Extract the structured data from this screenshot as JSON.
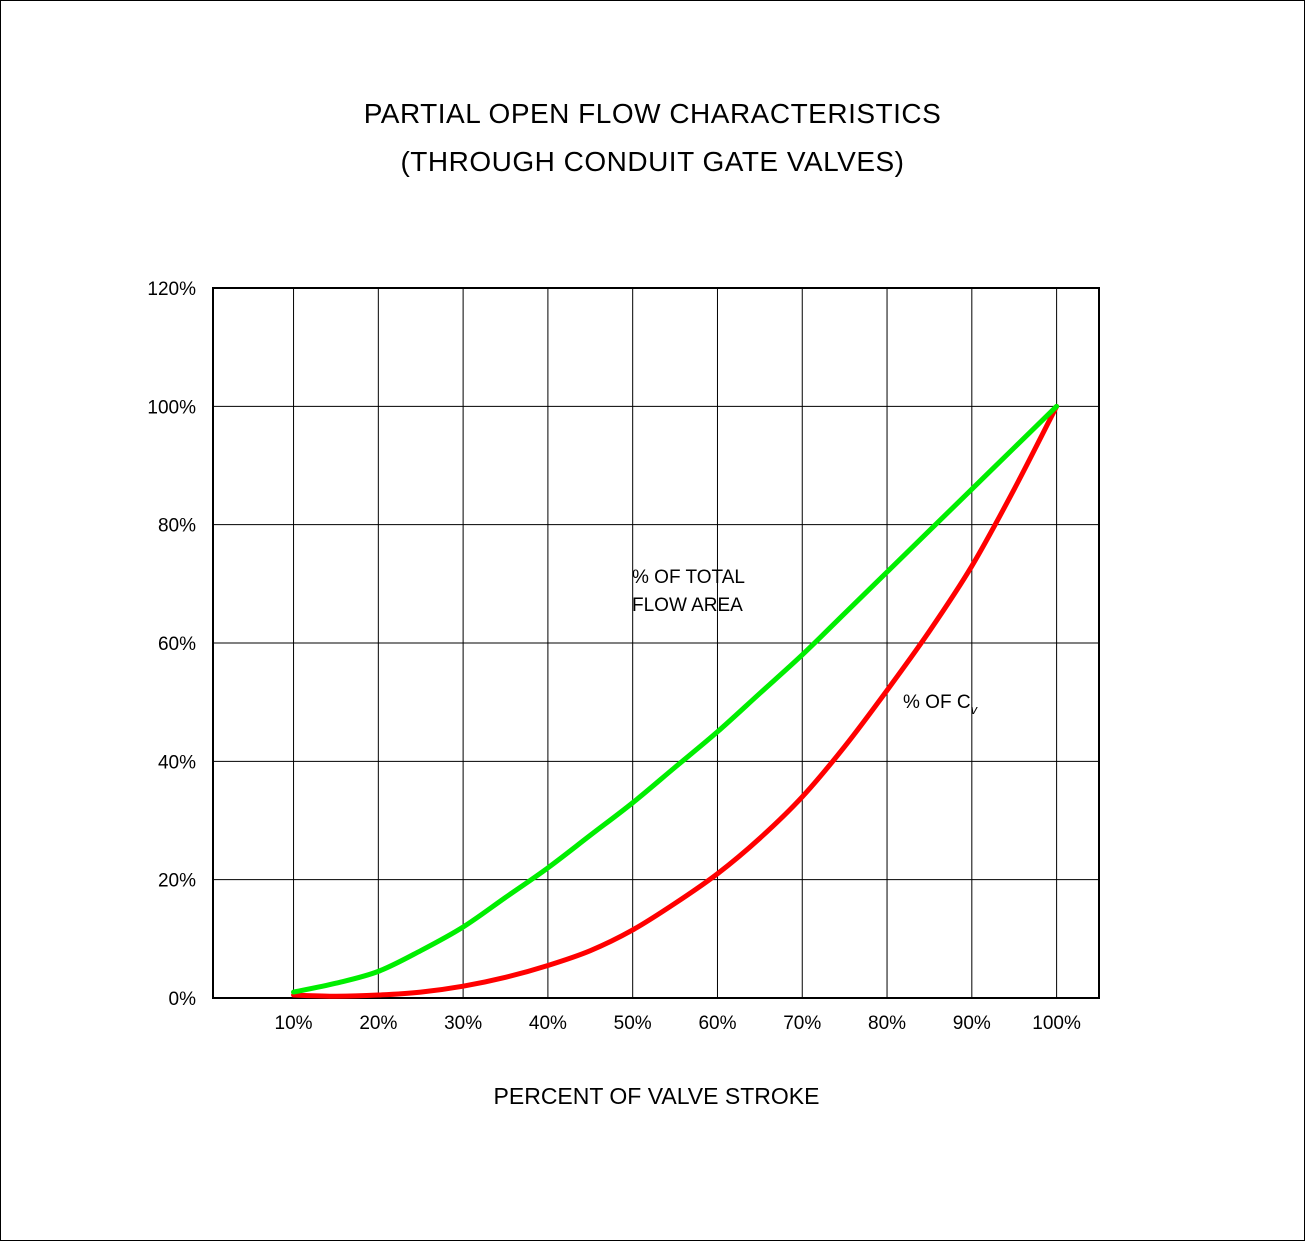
{
  "chart_data": {
    "type": "line",
    "title": "PARTIAL OPEN FLOW CHARACTERISTICS",
    "subtitle": "(THROUGH CONDUIT GATE VALVES)",
    "xlabel": "PERCENT OF VALVE STROKE",
    "ylabel": "",
    "x_tick_labels": [
      "10%",
      "20%",
      "30%",
      "40%",
      "50%",
      "60%",
      "70%",
      "80%",
      "90%",
      "100%"
    ],
    "y_tick_labels": [
      "0%",
      "20%",
      "40%",
      "60%",
      "80%",
      "100%",
      "120%"
    ],
    "xlim": [
      0.5,
      105
    ],
    "ylim": [
      0,
      120
    ],
    "grid": true,
    "series": [
      {
        "name": "% OF TOTAL FLOW AREA",
        "color": "#00ee00",
        "x": [
          10,
          15,
          20,
          25,
          30,
          35,
          40,
          45,
          50,
          55,
          60,
          65,
          70,
          75,
          80,
          85,
          90,
          95,
          100
        ],
        "y": [
          1,
          2.5,
          4.5,
          8,
          12,
          17,
          22,
          27.5,
          33,
          39,
          45,
          51.5,
          58,
          65,
          72,
          79,
          86,
          93,
          100
        ]
      },
      {
        "name": "% OF C",
        "name_subscript": "v",
        "color": "#ff0000",
        "x": [
          10,
          15,
          20,
          25,
          30,
          35,
          40,
          45,
          50,
          55,
          60,
          65,
          70,
          75,
          80,
          85,
          90,
          95,
          100
        ],
        "y": [
          0.5,
          0.3,
          0.5,
          1,
          2,
          3.5,
          5.5,
          8,
          11.5,
          16,
          21,
          27,
          34,
          42.5,
          52,
          62,
          73,
          86,
          100
        ]
      }
    ]
  }
}
